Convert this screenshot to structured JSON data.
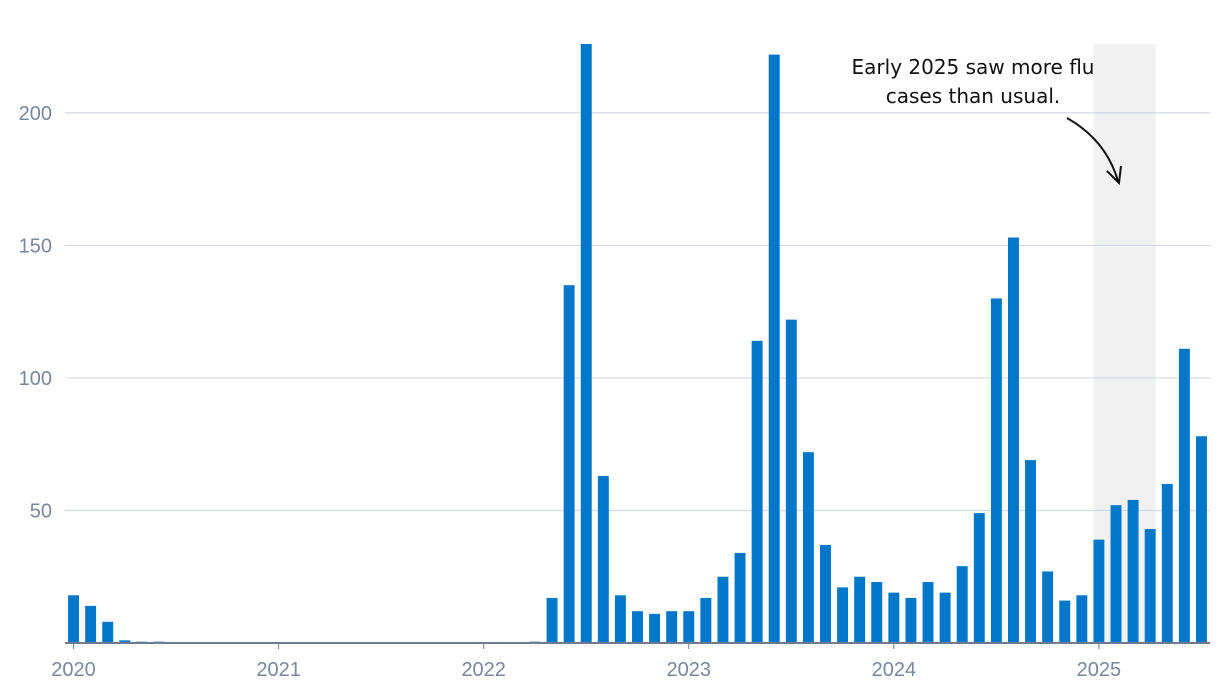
{
  "chart_data": {
    "type": "bar",
    "title": "",
    "xlabel": "",
    "ylabel": "",
    "ylim": [
      0,
      226
    ],
    "yticks": [
      50,
      100,
      150,
      200
    ],
    "y_tick_labels": [
      "50",
      "100",
      "150",
      "200"
    ],
    "x_tick_labels": [
      "2020",
      "2021",
      "2022",
      "2023",
      "2024",
      "2025"
    ],
    "grid": true,
    "legend": "none",
    "bar_color": "#0077c8",
    "grid_color": "#d3d8e6",
    "axis_color": "#6f7a90",
    "shade_color": "#f1f1f1",
    "categories": [
      "2020-01",
      "2020-02",
      "2020-03",
      "2020-04",
      "2020-05",
      "2020-06",
      "2020-07",
      "2020-08",
      "2020-09",
      "2020-10",
      "2020-11",
      "2020-12",
      "2021-01",
      "2021-02",
      "2021-03",
      "2021-04",
      "2021-05",
      "2021-06",
      "2021-07",
      "2021-08",
      "2021-09",
      "2021-10",
      "2021-11",
      "2021-12",
      "2022-01",
      "2022-02",
      "2022-03",
      "2022-04",
      "2022-05",
      "2022-06",
      "2022-07",
      "2022-08",
      "2022-09",
      "2022-10",
      "2022-11",
      "2022-12",
      "2023-01",
      "2023-02",
      "2023-03",
      "2023-04",
      "2023-05",
      "2023-06",
      "2023-07",
      "2023-08",
      "2023-09",
      "2023-10",
      "2023-11",
      "2023-12",
      "2024-01",
      "2024-02",
      "2024-03",
      "2024-04",
      "2024-05",
      "2024-06",
      "2024-07",
      "2024-08",
      "2024-09",
      "2024-10",
      "2024-11",
      "2024-12",
      "2025-01",
      "2025-02",
      "2025-03",
      "2025-04",
      "2025-05",
      "2025-06",
      "2025-07"
    ],
    "values": [
      18,
      14,
      8,
      1,
      0.5,
      0.5,
      0,
      0,
      0,
      0,
      0,
      0,
      0,
      0,
      0,
      0,
      0,
      0,
      0,
      0,
      0,
      0,
      0,
      0,
      0,
      0,
      0,
      0.5,
      17,
      135,
      226,
      63,
      18,
      12,
      11,
      12,
      12,
      17,
      25,
      34,
      114,
      222,
      122,
      72,
      37,
      21,
      25,
      23,
      19,
      17,
      23,
      19,
      29,
      49,
      130,
      153,
      69,
      27,
      16,
      18,
      39,
      52,
      54,
      43,
      60,
      111,
      78
    ],
    "highlight": {
      "start": "2025-01",
      "end": "2025-04"
    },
    "annotation": {
      "lines": [
        "Early 2025 saw more flu",
        "cases than usual."
      ]
    }
  }
}
